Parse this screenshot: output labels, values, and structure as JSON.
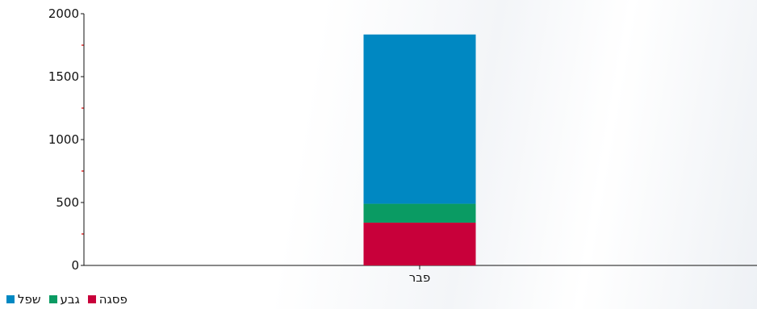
{
  "chart_data": {
    "type": "bar",
    "stacked": true,
    "categories": [
      "פבר"
    ],
    "series": [
      {
        "name": "פסגה",
        "color": "#c8003a",
        "values": [
          340
        ]
      },
      {
        "name": "גבע",
        "color": "#0a9b63",
        "values": [
          150
        ]
      },
      {
        "name": "שפל",
        "color": "#0088c2",
        "values": [
          1345
        ]
      }
    ],
    "ylim": [
      0,
      2000
    ],
    "yticks": [
      "0",
      "500",
      "1000",
      "1500",
      "2000"
    ],
    "grid": false,
    "legend_position": "bottom-left"
  }
}
